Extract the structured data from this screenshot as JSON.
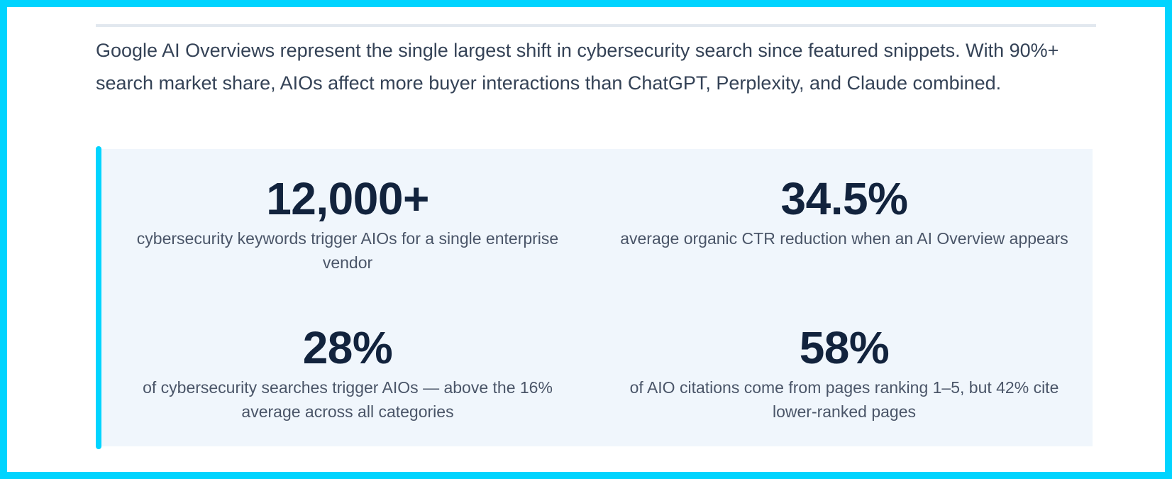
{
  "intro": {
    "text": "Google AI Overviews represent the single largest shift in cybersecurity search since featured snippets. With 90%+ search market share, AIOs affect more buyer interactions than ChatGPT, Perplexity, and Claude combined."
  },
  "stats": [
    {
      "value": "12,000+",
      "description": "cybersecurity keywords trigger AIOs for a single enterprise vendor"
    },
    {
      "value": "34.5%",
      "description": "average organic CTR reduction when an AI Overview appears"
    },
    {
      "value": "28%",
      "description": "of cybersecurity searches trigger AIOs — above the 16% average across all categories"
    },
    {
      "value": "58%",
      "description": "of AIO citations come from pages ranking 1–5, but 42% cite lower-ranked pages"
    }
  ],
  "colors": {
    "frame_border": "#00d4ff",
    "accent_bar": "#00d4ff",
    "panel_background": "#f0f6fc",
    "stat_value": "#12233d",
    "body_text": "#344256"
  }
}
